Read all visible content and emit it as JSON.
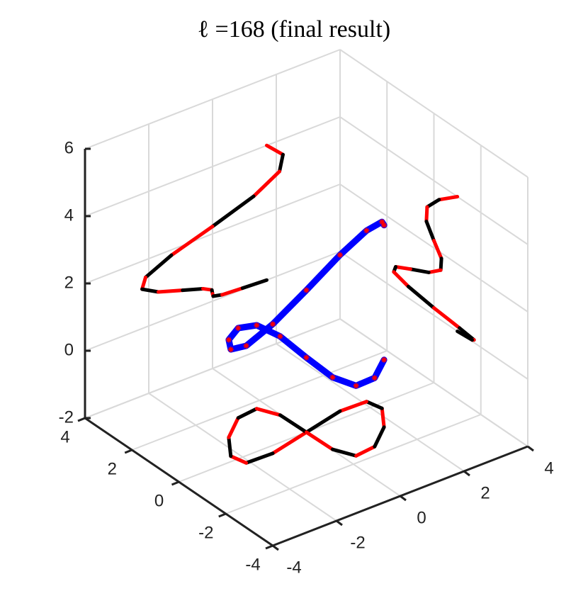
{
  "chart_data": {
    "type": "line3d",
    "title": "ℓ =168 (final result)",
    "xlim": [
      -4,
      4
    ],
    "ylim": [
      -4,
      4
    ],
    "zlim": [
      -2,
      6
    ],
    "xticks": [
      -4,
      -2,
      0,
      2,
      4
    ],
    "yticks": [
      -4,
      -2,
      0,
      2,
      4
    ],
    "zticks": [
      -2,
      0,
      2,
      4,
      6
    ],
    "grid": true,
    "projections": true,
    "projection_colors": [
      "#ff0000",
      "#000000"
    ],
    "series": [
      {
        "color": "#0000ff",
        "marker_color": "#ff0000",
        "x": [
          1.7,
          2.21,
          2.1,
          1.29,
          0,
          -1.29,
          -2.1,
          -2.21,
          -1.7,
          -0.94,
          -0.3,
          -0.02,
          0,
          0.02,
          0.3,
          0.94,
          1.7
        ],
        "y": [
          -1.0,
          -0.22,
          0.29,
          0.32,
          0,
          -0.32,
          -0.29,
          0.22,
          1.0,
          1.63,
          1.71,
          1.09,
          0,
          -1.09,
          -1.71,
          -1.63,
          -1.0
        ],
        "z": [
          4,
          3.54,
          3.08,
          2.64,
          2.22,
          1.84,
          1.48,
          1.17,
          0.9,
          0.67,
          0.48,
          0.34,
          0.22,
          0.14,
          0.08,
          0.04,
          0
        ]
      }
    ]
  }
}
